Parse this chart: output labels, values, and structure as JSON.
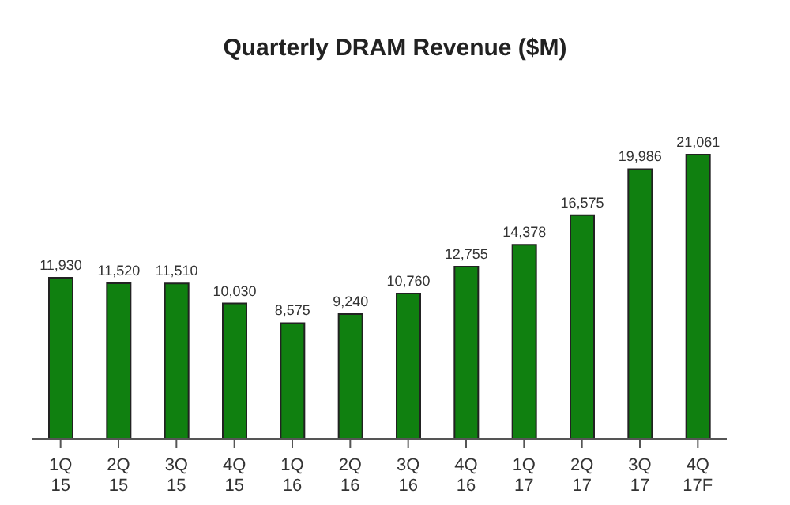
{
  "chart_data": {
    "type": "bar",
    "title": "Quarterly DRAM Revenue ($M)",
    "categories": [
      "1Q\n15",
      "2Q\n15",
      "3Q\n15",
      "4Q\n15",
      "1Q\n16",
      "2Q\n16",
      "3Q\n16",
      "4Q\n16",
      "1Q\n17",
      "2Q\n17",
      "3Q\n17",
      "4Q\n17F"
    ],
    "values": [
      11930,
      11520,
      11510,
      10030,
      8575,
      9240,
      10760,
      12755,
      14378,
      16575,
      19986,
      21061
    ],
    "value_labels": [
      "11,930",
      "11,520",
      "11,510",
      "10,030",
      "8,575",
      "9,240",
      "10,760",
      "12,755",
      "14,378",
      "16,575",
      "19,986",
      "21,061"
    ],
    "color": "#108010"
  }
}
